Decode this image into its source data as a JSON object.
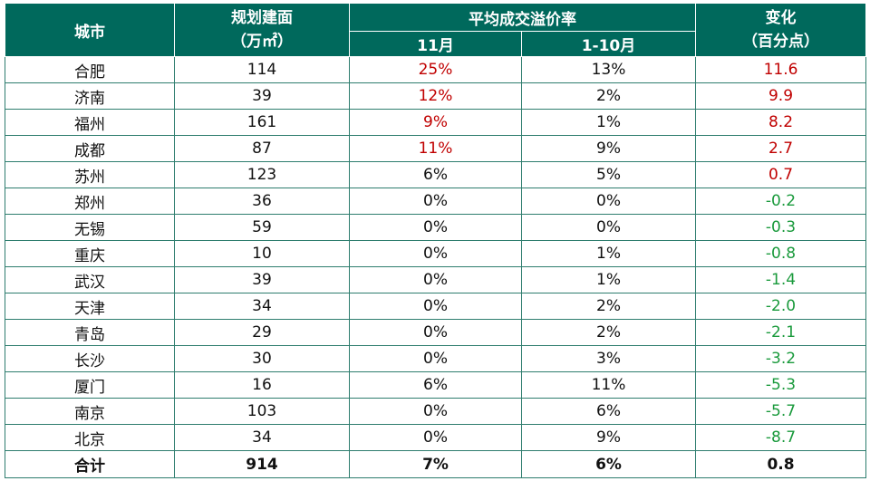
{
  "header": {
    "city": "城市",
    "area_line1": "规划建面",
    "area_line2": "（万㎡）",
    "premium_group": "平均成交溢价率",
    "nov": "11月",
    "jan_oct": "1-10月",
    "change_line1": "变化",
    "change_line2": "（百分点）"
  },
  "rows": [
    {
      "city": "合肥",
      "area": "114",
      "nov": "25%",
      "jan_oct": "13%",
      "change": "11.6"
    },
    {
      "city": "济南",
      "area": "39",
      "nov": "12%",
      "jan_oct": "2%",
      "change": "9.9"
    },
    {
      "city": "福州",
      "area": "161",
      "nov": "9%",
      "jan_oct": "1%",
      "change": "8.2"
    },
    {
      "city": "成都",
      "area": "87",
      "nov": "11%",
      "jan_oct": "9%",
      "change": "2.7"
    },
    {
      "city": "苏州",
      "area": "123",
      "nov": "6%",
      "jan_oct": "5%",
      "change": "0.7"
    },
    {
      "city": "郑州",
      "area": "36",
      "nov": "0%",
      "jan_oct": "0%",
      "change": "-0.2"
    },
    {
      "city": "无锡",
      "area": "59",
      "nov": "0%",
      "jan_oct": "0%",
      "change": "-0.3"
    },
    {
      "city": "重庆",
      "area": "10",
      "nov": "0%",
      "jan_oct": "1%",
      "change": "-0.8"
    },
    {
      "city": "武汉",
      "area": "39",
      "nov": "0%",
      "jan_oct": "1%",
      "change": "-1.4"
    },
    {
      "city": "天津",
      "area": "34",
      "nov": "0%",
      "jan_oct": "2%",
      "change": "-2.0"
    },
    {
      "city": "青岛",
      "area": "29",
      "nov": "0%",
      "jan_oct": "2%",
      "change": "-2.1"
    },
    {
      "city": "长沙",
      "area": "30",
      "nov": "0%",
      "jan_oct": "3%",
      "change": "-3.2"
    },
    {
      "city": "厦门",
      "area": "16",
      "nov": "6%",
      "jan_oct": "11%",
      "change": "-5.3"
    },
    {
      "city": "南京",
      "area": "103",
      "nov": "0%",
      "jan_oct": "6%",
      "change": "-5.7"
    },
    {
      "city": "北京",
      "area": "34",
      "nov": "0%",
      "jan_oct": "9%",
      "change": "-8.7"
    }
  ],
  "total": {
    "city": "合计",
    "area": "914",
    "nov": "7%",
    "jan_oct": "6%",
    "change": "0.8"
  },
  "colors": {
    "header_bg": "#00695c",
    "positive": "#c00000",
    "negative": "#1a9a3c",
    "border": "#2e7d6e"
  }
}
